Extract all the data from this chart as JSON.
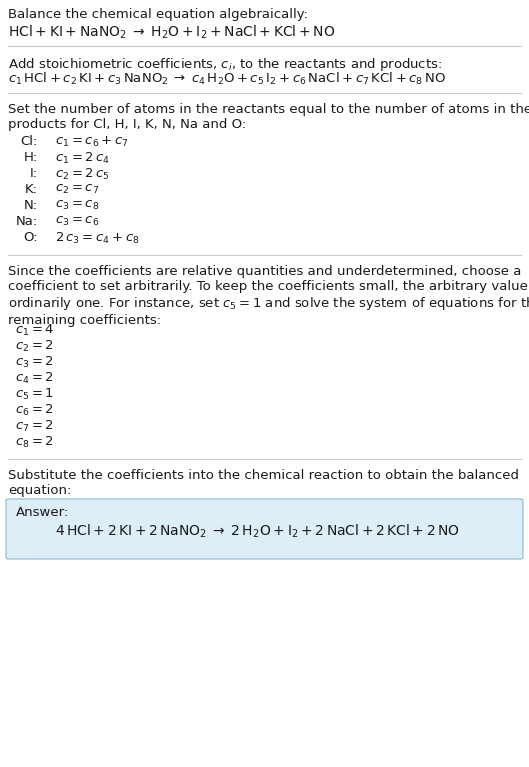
{
  "bg_color": "#ffffff",
  "text_color": "#1a1a1a",
  "answer_box_color": "#ddeef6",
  "answer_box_border": "#88bbcc",
  "figsize": [
    5.29,
    7.67
  ],
  "dpi": 100,
  "section1_title": "Balance the chemical equation algebraically:",
  "section1_eq": "$\\mathrm{HCl} + \\mathrm{KI} + \\mathrm{NaNO_2} \\;\\rightarrow\\; \\mathrm{H_2O} + \\mathrm{I_2} + \\mathrm{NaCl} + \\mathrm{KCl} + \\mathrm{NO}$",
  "section2_title": "Add stoichiometric coefficients, $c_i$, to the reactants and products:",
  "section2_eq": "$c_1\\,\\mathrm{HCl} + c_2\\,\\mathrm{KI} + c_3\\,\\mathrm{NaNO_2} \\;\\rightarrow\\; c_4\\,\\mathrm{H_2O} + c_5\\,\\mathrm{I_2} + c_6\\,\\mathrm{NaCl} + c_7\\,\\mathrm{KCl} + c_8\\,\\mathrm{NO}$",
  "section3_title": "Set the number of atoms in the reactants equal to the number of atoms in the\nproducts for Cl, H, I, K, N, Na and O:",
  "equations": [
    [
      "Cl:",
      "$c_1 = c_6 + c_7$"
    ],
    [
      "H:",
      "$c_1 = 2\\,c_4$"
    ],
    [
      "I:",
      "$c_2 = 2\\,c_5$"
    ],
    [
      "K:",
      "$c_2 = c_7$"
    ],
    [
      "N:",
      "$c_3 = c_8$"
    ],
    [
      "Na:",
      "$c_3 = c_6$"
    ],
    [
      "O:",
      "$2\\,c_3 = c_4 + c_8$"
    ]
  ],
  "section4_text": "Since the coefficients are relative quantities and underdetermined, choose a\ncoefficient to set arbitrarily. To keep the coefficients small, the arbitrary value is\nordinarily one. For instance, set $c_5 = 1$ and solve the system of equations for the\nremaining coefficients:",
  "coefficients": [
    "$c_1 = 4$",
    "$c_2 = 2$",
    "$c_3 = 2$",
    "$c_4 = 2$",
    "$c_5 = 1$",
    "$c_6 = 2$",
    "$c_7 = 2$",
    "$c_8 = 2$"
  ],
  "section5_text": "Substitute the coefficients into the chemical reaction to obtain the balanced\nequation:",
  "answer_label": "Answer:",
  "answer_eq": "$4\\,\\mathrm{HCl} + 2\\,\\mathrm{KI} + 2\\,\\mathrm{NaNO_2} \\;\\rightarrow\\; 2\\,\\mathrm{H_2O} + \\mathrm{I_2} + 2\\,\\mathrm{NaCl} + 2\\,\\mathrm{KCl} + 2\\,\\mathrm{NO}$"
}
